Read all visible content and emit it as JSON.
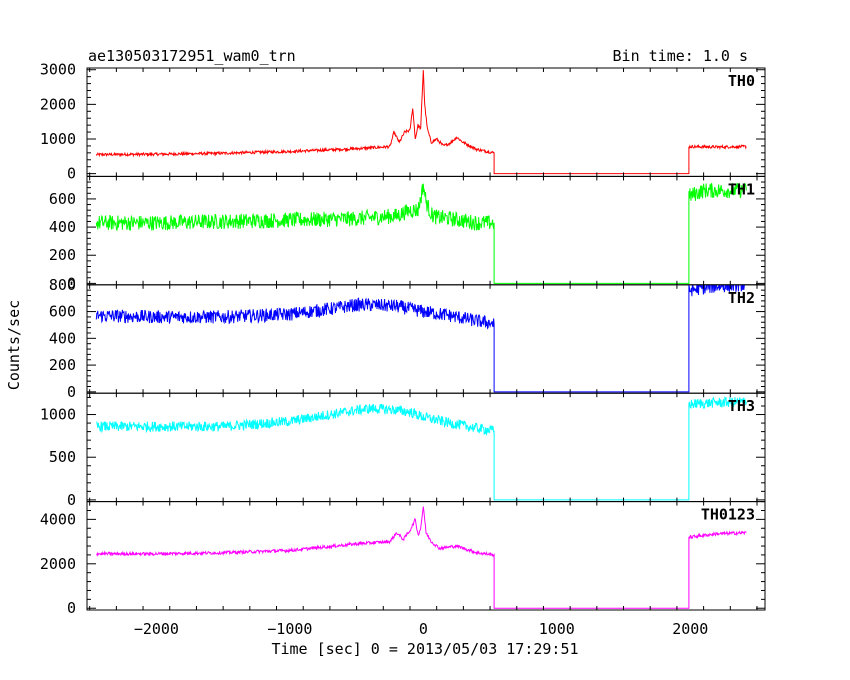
{
  "header": {
    "title": "ae130503172951_wam0_trn",
    "bin_time": "Bin time: 1.0 s"
  },
  "axes": {
    "xlabel": "Time [sec] 0 = 2013/05/03 17:29:51",
    "ylabel": "Counts/sec"
  },
  "chart_data": {
    "type": "line",
    "xlim": [
      -2520,
      2560
    ],
    "x_ticks": [
      -2000,
      -1000,
      0,
      1000,
      2000
    ],
    "x_tick_labels": [
      "−2000",
      "−1000",
      "0",
      "1000",
      "2000"
    ],
    "gap": [
      530,
      1990
    ],
    "panels": [
      {
        "name": "TH0",
        "color": "#ff0000",
        "ylim": [
          -80,
          3050
        ],
        "y_ticks": [
          0,
          1000,
          2000,
          3000
        ],
        "y_tick_labels": [
          "0",
          "1000",
          "2000",
          "3000"
        ],
        "x": [
          -2450,
          -2000,
          -1500,
          -1000,
          -500,
          -250,
          -220,
          -180,
          -140,
          -100,
          -80,
          -60,
          -40,
          -20,
          0,
          10,
          30,
          60,
          100,
          150,
          200,
          250,
          300,
          400,
          530,
          530,
          1990,
          1990,
          2200,
          2420
        ],
        "y": [
          550,
          560,
          590,
          640,
          720,
          780,
          1200,
          900,
          1200,
          1250,
          1900,
          1000,
          1400,
          1300,
          3000,
          2000,
          1300,
          900,
          1000,
          800,
          880,
          1050,
          900,
          700,
          600,
          0,
          0,
          780,
          770,
          780
        ],
        "noise": 40
      },
      {
        "name": "TH1",
        "color": "#00ff00",
        "ylim": [
          -10,
          760
        ],
        "y_ticks": [
          0,
          200,
          400,
          600
        ],
        "y_tick_labels": [
          "0",
          "200",
          "400",
          "600"
        ],
        "x": [
          -2450,
          -2000,
          -1500,
          -1000,
          -500,
          -200,
          -100,
          -40,
          -20,
          0,
          20,
          60,
          100,
          200,
          400,
          530,
          530,
          1990,
          1990,
          2100,
          2420
        ],
        "y": [
          430,
          430,
          440,
          450,
          460,
          480,
          520,
          520,
          600,
          700,
          580,
          490,
          470,
          460,
          430,
          430,
          0,
          0,
          620,
          660,
          660
        ],
        "noise": 55
      },
      {
        "name": "TH2",
        "color": "#0000ff",
        "ylim": [
          -10,
          800
        ],
        "y_ticks": [
          0,
          200,
          400,
          600,
          800
        ],
        "y_tick_labels": [
          "0",
          "200",
          "400",
          "600",
          "800"
        ],
        "x": [
          -2450,
          -2000,
          -1500,
          -1000,
          -700,
          -500,
          -400,
          -200,
          0,
          200,
          400,
          530,
          530,
          1990,
          1990,
          2200,
          2420
        ],
        "y": [
          570,
          560,
          560,
          580,
          620,
          650,
          650,
          640,
          600,
          570,
          530,
          510,
          0,
          0,
          760,
          790,
          800
        ],
        "noise": 50
      },
      {
        "name": "TH3",
        "color": "#00ffff",
        "ylim": [
          -20,
          1250
        ],
        "y_ticks": [
          0,
          500,
          1000
        ],
        "y_tick_labels": [
          "0",
          "500",
          "1000"
        ],
        "x": [
          -2450,
          -2000,
          -1500,
          -1000,
          -700,
          -500,
          -400,
          -250,
          -100,
          0,
          200,
          400,
          530,
          530,
          1990,
          1990,
          2200,
          2420
        ],
        "y": [
          860,
          860,
          860,
          920,
          1000,
          1050,
          1070,
          1060,
          1030,
          970,
          900,
          840,
          810,
          0,
          0,
          1120,
          1140,
          1150
        ],
        "noise": 60
      },
      {
        "name": "TH0123",
        "color": "#ff00ff",
        "ylim": [
          -80,
          4800
        ],
        "y_ticks": [
          0,
          2000,
          4000
        ],
        "y_tick_labels": [
          "0",
          "2000",
          "4000"
        ],
        "x": [
          -2450,
          -2000,
          -1500,
          -1000,
          -500,
          -250,
          -200,
          -150,
          -100,
          -60,
          -40,
          -20,
          0,
          20,
          60,
          120,
          250,
          400,
          530,
          530,
          1990,
          1990,
          2200,
          2420
        ],
        "y": [
          2450,
          2450,
          2500,
          2600,
          2900,
          3000,
          3400,
          3100,
          3500,
          4000,
          3300,
          3600,
          4600,
          3400,
          3000,
          2700,
          2800,
          2500,
          2400,
          0,
          0,
          3200,
          3350,
          3400
        ],
        "noise": 70
      }
    ]
  }
}
